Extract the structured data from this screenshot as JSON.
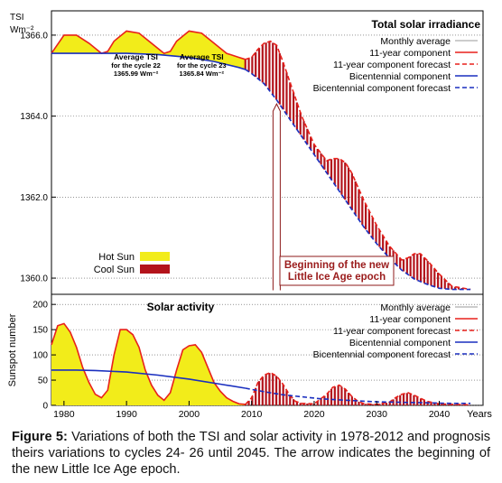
{
  "chart_data": [
    {
      "type": "area",
      "title": "Total solar irradiance",
      "ylabel": "TSI",
      "yunit": "Wm⁻²",
      "ylim": [
        1359.6,
        1366.6
      ],
      "yticks": [
        "1360.0",
        "1362.0",
        "1364.0",
        "1366.0"
      ],
      "xlim": [
        1978,
        2047
      ],
      "grid": "horizontal dotted",
      "legend_position": "top-right",
      "legend": [
        "Monthly average",
        "11-year component",
        "11-year component forecast",
        "Bicentennial component",
        "Bicentennial component forecast"
      ],
      "fill_legend": [
        {
          "label": "Hot Sun",
          "color": "#f2ec1a"
        },
        {
          "label": "Cool Sun",
          "color": "#b3131b"
        }
      ],
      "annotations": [
        {
          "text": "Average TSI\nfor the cycle 22\n1365.99 Wm⁻²",
          "x": 1991.5,
          "y": 1365.4
        },
        {
          "text": "Average TSI\nfor the cycle 23\n1365.84 Wm⁻²",
          "x": 2002,
          "y": 1365.4
        }
      ],
      "arrow_label": "Beginning of the new\nLittle Ice Age epoch",
      "arrow": {
        "x": 2014,
        "y_from": 1359.7,
        "y_to": 1364.3
      },
      "series": [
        {
          "name": "11-year component",
          "color": "#e8211b",
          "style": "solid",
          "x": [
            1978,
            1980,
            1982,
            1984,
            1986,
            1987,
            1988,
            1990,
            1992,
            1994,
            1996,
            1997,
            1998,
            2000,
            2002,
            2004,
            2006,
            2008,
            2009
          ],
          "y": [
            1365.55,
            1366.0,
            1366.0,
            1365.8,
            1365.55,
            1365.6,
            1365.85,
            1366.1,
            1366.05,
            1365.8,
            1365.55,
            1365.6,
            1365.85,
            1366.1,
            1366.05,
            1365.8,
            1365.55,
            1365.45,
            1365.4
          ]
        },
        {
          "name": "11-year component forecast",
          "color": "#e8211b",
          "style": "dashed",
          "x": [
            2009,
            2010,
            2011,
            2012,
            2013,
            2014,
            2015,
            2016,
            2017,
            2018,
            2020,
            2022,
            2023,
            2024,
            2025,
            2026,
            2027,
            2028,
            2030,
            2032,
            2034,
            2035,
            2036,
            2037,
            2038,
            2040,
            2042,
            2045
          ],
          "y": [
            1365.4,
            1365.45,
            1365.65,
            1365.8,
            1365.85,
            1365.75,
            1365.35,
            1364.9,
            1364.45,
            1364.0,
            1363.3,
            1362.9,
            1362.95,
            1362.95,
            1362.85,
            1362.6,
            1362.25,
            1361.9,
            1361.3,
            1360.8,
            1360.45,
            1360.5,
            1360.6,
            1360.6,
            1360.45,
            1360.1,
            1359.8,
            1359.72
          ]
        },
        {
          "name": "Bicentennial component",
          "color": "#1a2fbf",
          "style": "solid",
          "x": [
            1978,
            1985,
            1990,
            1995,
            2000,
            2004,
            2008,
            2009
          ],
          "y": [
            1365.55,
            1365.55,
            1365.55,
            1365.52,
            1365.45,
            1365.35,
            1365.2,
            1365.15
          ]
        },
        {
          "name": "Bicentennial component forecast",
          "color": "#1a2fbf",
          "style": "dashed",
          "x": [
            2009,
            2010,
            2012,
            2014,
            2016,
            2018,
            2020,
            2022,
            2024,
            2026,
            2028,
            2030,
            2032,
            2034,
            2036,
            2038,
            2040,
            2042,
            2045
          ],
          "y": [
            1365.15,
            1365.05,
            1364.8,
            1364.4,
            1363.95,
            1363.5,
            1363.05,
            1362.6,
            1362.15,
            1361.7,
            1361.25,
            1360.85,
            1360.5,
            1360.2,
            1359.98,
            1359.85,
            1359.75,
            1359.72,
            1359.72
          ]
        }
      ]
    },
    {
      "type": "area",
      "title": "Solar activity",
      "ylabel": "Sunspot number",
      "ylim": [
        0,
        220
      ],
      "yticks": [
        "0",
        "50",
        "100",
        "150",
        "200"
      ],
      "xlim": [
        1978,
        2047
      ],
      "xlabel": "Years",
      "xticks": [
        "1980",
        "1990",
        "2000",
        "2010",
        "2020",
        "2030",
        "2040"
      ],
      "grid": "horizontal dotted",
      "legend_position": "top-right",
      "legend": [
        "Monthly average",
        "11-year component",
        "11-year component forecast",
        "Bicentennial component",
        "Bicentennial component forecast"
      ],
      "series": [
        {
          "name": "11-year component",
          "color": "#e8211b",
          "style": "solid",
          "x": [
            1978,
            1979,
            1980,
            1981,
            1982,
            1983,
            1984,
            1985,
            1986,
            1987,
            1988,
            1989,
            1990,
            1991,
            1992,
            1993,
            1994,
            1995,
            1996,
            1997,
            1998,
            1999,
            2000,
            2001,
            2002,
            2003,
            2004,
            2005,
            2006,
            2007,
            2008,
            2009
          ],
          "y": [
            120,
            158,
            162,
            145,
            115,
            75,
            45,
            22,
            15,
            30,
            100,
            150,
            150,
            140,
            115,
            70,
            40,
            20,
            10,
            25,
            70,
            110,
            118,
            120,
            105,
            75,
            45,
            28,
            15,
            8,
            3,
            2
          ]
        },
        {
          "name": "11-year component forecast",
          "color": "#e8211b",
          "style": "dashed",
          "x": [
            2009,
            2010,
            2011,
            2012,
            2013,
            2014,
            2015,
            2016,
            2017,
            2018,
            2020,
            2022,
            2023,
            2024,
            2025,
            2026,
            2027,
            2028,
            2030,
            2032,
            2033,
            2034,
            2035,
            2036,
            2038,
            2040,
            2042,
            2045
          ],
          "y": [
            2,
            15,
            45,
            60,
            65,
            58,
            42,
            22,
            8,
            4,
            3,
            22,
            36,
            40,
            32,
            18,
            8,
            3,
            2,
            6,
            15,
            22,
            25,
            20,
            8,
            3,
            2,
            1
          ]
        },
        {
          "name": "Bicentennial component",
          "color": "#1a2fbf",
          "style": "solid",
          "x": [
            1978,
            1982,
            1985,
            1990,
            1995,
            2000,
            2005,
            2009
          ],
          "y": [
            70,
            70,
            69,
            66,
            60,
            52,
            42,
            34
          ]
        },
        {
          "name": "Bicentennial component forecast",
          "color": "#1a2fbf",
          "style": "dashed",
          "x": [
            2009,
            2012,
            2015,
            2018,
            2021,
            2024,
            2027,
            2030,
            2034,
            2038,
            2042,
            2045
          ],
          "y": [
            34,
            27,
            21,
            17,
            13,
            11,
            9,
            7,
            6,
            5,
            4,
            4
          ]
        }
      ]
    }
  ],
  "caption": {
    "label": "Figure 5:",
    "text": " Variations of both the TSI and solar activity in 1978-2012 and prognosis theirs variations to cycles 24- 26 until 2045. The arrow indicates the beginning of the new Little Ice Age epoch."
  },
  "colors": {
    "hot_sun": "#f2ec1a",
    "cool_sun": "#b3131b",
    "red_line": "#e8211b",
    "blue_line": "#1a2fbf"
  }
}
